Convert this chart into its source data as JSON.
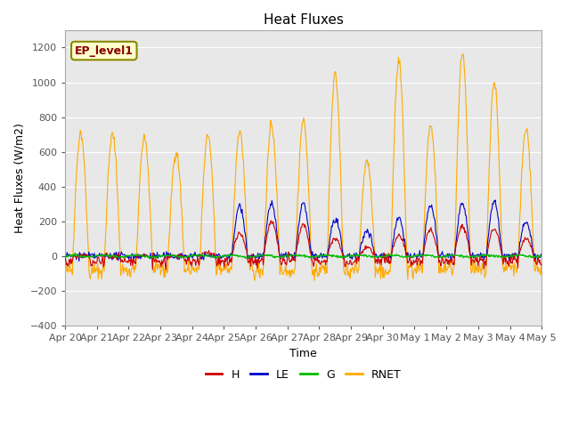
{
  "title": "Heat Fluxes",
  "ylabel": "Heat Fluxes (W/m2)",
  "xlabel": "Time",
  "ylim": [
    -400,
    1300
  ],
  "yticks": [
    -400,
    -200,
    0,
    200,
    400,
    600,
    800,
    1000,
    1200
  ],
  "legend_label": "EP_level1",
  "series_labels": [
    "H",
    "LE",
    "G",
    "RNET"
  ],
  "series_colors": [
    "#cc0000",
    "#0000cc",
    "#00bb00",
    "#ffaa00"
  ],
  "background_color": "#e8e8e8",
  "x_tick_labels": [
    "Apr 20",
    "Apr 21",
    "Apr 22",
    "Apr 23",
    "Apr 24",
    "Apr 25",
    "Apr 26",
    "Apr 27",
    "Apr 28",
    "Apr 29",
    "Apr 30",
    "May 1",
    "May 2",
    "May 3",
    "May 4",
    "May 5"
  ],
  "n_days": 15,
  "pts_per_day": 48
}
